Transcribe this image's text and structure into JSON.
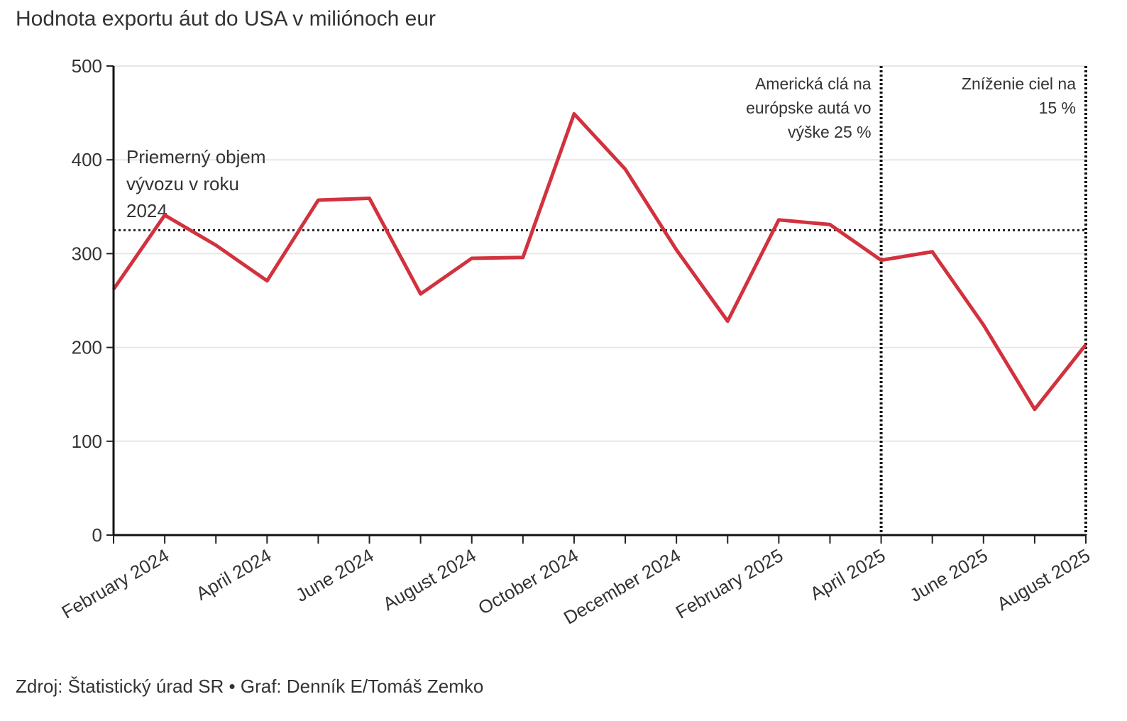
{
  "chart_data": {
    "type": "line",
    "title": "Hodnota exportu áut do USA v miliónoch eur",
    "source": "Zdroj: Štatistický úrad SR • Graf: Denník E/Tomáš Zemko",
    "categories": [
      null,
      "February 2024",
      null,
      "April 2024",
      null,
      "June 2024",
      null,
      "August 2024",
      null,
      "October 2024",
      null,
      "December 2024",
      null,
      "February 2025",
      null,
      "April 2025",
      null,
      "June 2025",
      null,
      "August 2025"
    ],
    "series": [
      {
        "color": "#d1323e",
        "values": [
          262,
          341,
          309,
          271,
          357,
          359,
          257,
          295,
          296,
          449,
          390,
          304,
          228,
          336,
          331,
          293,
          302,
          224,
          134,
          203
        ]
      }
    ],
    "ylim": [
      0,
      500
    ],
    "yticks": [
      0,
      100,
      200,
      300,
      400,
      500
    ],
    "grid": true,
    "reference_line": {
      "value": 325,
      "label": [
        "Priemerný objem",
        "vývozu v roku",
        "2024"
      ]
    },
    "event_lines": [
      {
        "x": "April 2025",
        "label": [
          "Americká clá na",
          "európske autá vo",
          "výške 25 %"
        ]
      },
      {
        "x": "August 2025",
        "label": [
          "Zníženie ciel na",
          "15 %"
        ]
      }
    ]
  }
}
